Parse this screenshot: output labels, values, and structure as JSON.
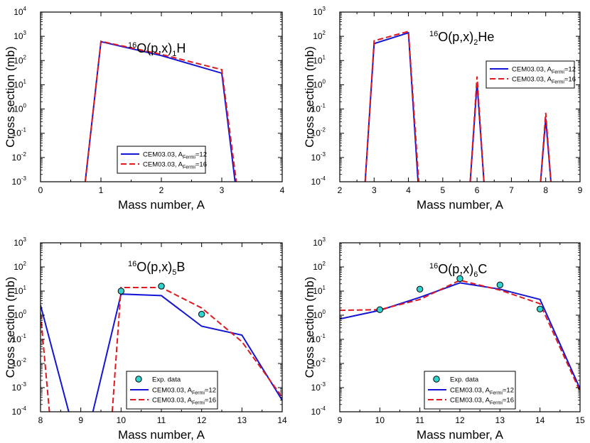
{
  "colors": {
    "blue": "#1515d6",
    "red": "#e0191f",
    "marker_fill": "#2fd3d0"
  },
  "chart_data": [
    {
      "type": "line",
      "title": {
        "pre": "16",
        "mid": "O(p,x)",
        "sub": "1",
        "post": "H"
      },
      "xlabel": "Mass number, A",
      "ylabel": "Cross section (mb)",
      "xlim": [
        0,
        4
      ],
      "xticks": [
        0,
        1,
        2,
        3,
        4
      ],
      "ylim_log10": [
        -3,
        4
      ],
      "yscale": "log",
      "yticks": [
        {
          "base": "10",
          "exp": "-3"
        },
        {
          "base": "10",
          "exp": "-2"
        },
        {
          "base": "10",
          "exp": "-1"
        },
        {
          "base": "10",
          "exp": "0"
        },
        {
          "base": "10",
          "exp": "1"
        },
        {
          "base": "10",
          "exp": "2"
        },
        {
          "base": "10",
          "exp": "3"
        },
        {
          "base": "10",
          "exp": "4"
        }
      ],
      "legend_placement": "bottom-center",
      "series": [
        {
          "name": {
            "pre": "CEM03.03, A",
            "sub": "Fermi",
            "post": "=12"
          },
          "style": "solid",
          "x": [
            0.74,
            1,
            2,
            3,
            3.22
          ],
          "y": [
            0.001,
            600,
            160,
            30,
            0.001
          ]
        },
        {
          "name": {
            "pre": "CEM03.03, A",
            "sub": "Fermi",
            "post": "=16"
          },
          "style": "dashed",
          "x": [
            0.74,
            1,
            2,
            3,
            3.24
          ],
          "y": [
            0.001,
            620,
            180,
            42,
            0.001
          ]
        }
      ]
    },
    {
      "type": "line",
      "title": {
        "pre": "16",
        "mid": "O(p,x)",
        "sub": "2",
        "post": "He"
      },
      "xlabel": "Mass number, A",
      "ylabel": "Cross section (mb)",
      "xlim": [
        2,
        9
      ],
      "xticks": [
        2,
        3,
        4,
        5,
        6,
        7,
        8,
        9
      ],
      "ylim_log10": [
        -4,
        3
      ],
      "yscale": "log",
      "yticks": [
        {
          "base": "10",
          "exp": "-4"
        },
        {
          "base": "10",
          "exp": "-3"
        },
        {
          "base": "10",
          "exp": "-2"
        },
        {
          "base": "10",
          "exp": "-1"
        },
        {
          "base": "10",
          "exp": "0"
        },
        {
          "base": "10",
          "exp": "1"
        },
        {
          "base": "10",
          "exp": "2"
        },
        {
          "base": "10",
          "exp": "3"
        }
      ],
      "legend_placement": "top-right",
      "series": [
        {
          "name": {
            "pre": "CEM03.03, A",
            "sub": "Fermi",
            "post": "=12"
          },
          "style": "solid",
          "segments": [
            {
              "x": [
                2.74,
                3,
                4,
                4.28
              ],
              "y": [
                0.0001,
                50,
                140,
                0.0001
              ]
            },
            {
              "x": [
                5.8,
                6,
                6.2
              ],
              "y": [
                0.0001,
                1.2,
                0.0001
              ]
            },
            {
              "x": [
                7.85,
                8,
                8.15
              ],
              "y": [
                0.0001,
                0.04,
                0.0001
              ]
            }
          ]
        },
        {
          "name": {
            "pre": "CEM03.03, A",
            "sub": "Fermi",
            "post": "=16"
          },
          "style": "dashed",
          "segments": [
            {
              "x": [
                2.74,
                3,
                4,
                4.3
              ],
              "y": [
                0.0001,
                65,
                160,
                0.0001
              ]
            },
            {
              "x": [
                5.8,
                6,
                6.2
              ],
              "y": [
                0.0001,
                2.2,
                0.0001
              ]
            },
            {
              "x": [
                7.85,
                8,
                8.15
              ],
              "y": [
                0.0001,
                0.07,
                0.0001
              ]
            }
          ]
        }
      ]
    },
    {
      "type": "line",
      "title": {
        "pre": "16",
        "mid": "O(p,x)",
        "sub": "5",
        "post": "B"
      },
      "xlabel": "Mass number, A",
      "ylabel": "Cross section (mb)",
      "xlim": [
        8,
        14
      ],
      "xticks": [
        8,
        9,
        10,
        11,
        12,
        13,
        14
      ],
      "ylim_log10": [
        -4,
        3
      ],
      "yscale": "log",
      "yticks": [
        {
          "base": "10",
          "exp": "-4"
        },
        {
          "base": "10",
          "exp": "-3"
        },
        {
          "base": "10",
          "exp": "-2"
        },
        {
          "base": "10",
          "exp": "-1"
        },
        {
          "base": "10",
          "exp": "0"
        },
        {
          "base": "10",
          "exp": "1"
        },
        {
          "base": "10",
          "exp": "2"
        },
        {
          "base": "10",
          "exp": "3"
        }
      ],
      "legend_placement": "bottom-left",
      "exp_data": {
        "name": "Exp. data",
        "x": [
          10,
          11,
          12
        ],
        "y": [
          10,
          16,
          1.1
        ]
      },
      "series": [
        {
          "name": {
            "pre": "CEM03.03, A",
            "sub": "Fermi",
            "post": "=12"
          },
          "style": "solid",
          "segments": [
            {
              "x": [
                8,
                8.7
              ],
              "y": [
                2.6,
                0.0001
              ]
            },
            {
              "x": [
                9.3,
                10,
                11,
                12,
                13,
                14
              ],
              "y": [
                0.0001,
                7.5,
                6.5,
                0.35,
                0.15,
                0.0003
              ]
            }
          ]
        },
        {
          "name": {
            "pre": "CEM03.03, A",
            "sub": "Fermi",
            "post": "=16"
          },
          "style": "dashed",
          "segments": [
            {
              "x": [
                8,
                8.22
              ],
              "y": [
                1.2,
                0.0001
              ]
            },
            {
              "x": [
                9.78,
                10,
                11,
                12,
                13,
                14
              ],
              "y": [
                0.0001,
                14,
                14,
                2,
                0.08,
                0.0004
              ]
            }
          ]
        }
      ]
    },
    {
      "type": "line",
      "title": {
        "pre": "16",
        "mid": "O(p,x)",
        "sub": "6",
        "post": "C"
      },
      "xlabel": "Mass number, A",
      "ylabel": "Cross section (mb)",
      "xlim": [
        9,
        15
      ],
      "xticks": [
        9,
        10,
        11,
        12,
        13,
        14,
        15
      ],
      "ylim_log10": [
        -4,
        3
      ],
      "yscale": "log",
      "yticks": [
        {
          "base": "10",
          "exp": "-4"
        },
        {
          "base": "10",
          "exp": "-3"
        },
        {
          "base": "10",
          "exp": "-2"
        },
        {
          "base": "10",
          "exp": "-1"
        },
        {
          "base": "10",
          "exp": "0"
        },
        {
          "base": "10",
          "exp": "1"
        },
        {
          "base": "10",
          "exp": "2"
        },
        {
          "base": "10",
          "exp": "3"
        }
      ],
      "legend_placement": "bottom-left",
      "exp_data": {
        "name": "Exp. data",
        "x": [
          10,
          11,
          12,
          13,
          14
        ],
        "y": [
          1.7,
          12,
          33,
          18,
          1.8
        ]
      },
      "series": [
        {
          "name": {
            "pre": "CEM03.03, A",
            "sub": "Fermi",
            "post": "=12"
          },
          "style": "solid",
          "x": [
            9,
            10,
            11,
            12,
            13,
            14,
            15
          ],
          "y": [
            0.7,
            1.6,
            5.5,
            22,
            12,
            4.5,
            0.0009
          ]
        },
        {
          "name": {
            "pre": "CEM03.03, A",
            "sub": "Fermi",
            "post": "=16"
          },
          "style": "dashed",
          "x": [
            9,
            10,
            11,
            12,
            13,
            14,
            15
          ],
          "y": [
            1.6,
            1.7,
            4.5,
            28,
            11,
            3,
            0.0007
          ]
        }
      ]
    }
  ]
}
